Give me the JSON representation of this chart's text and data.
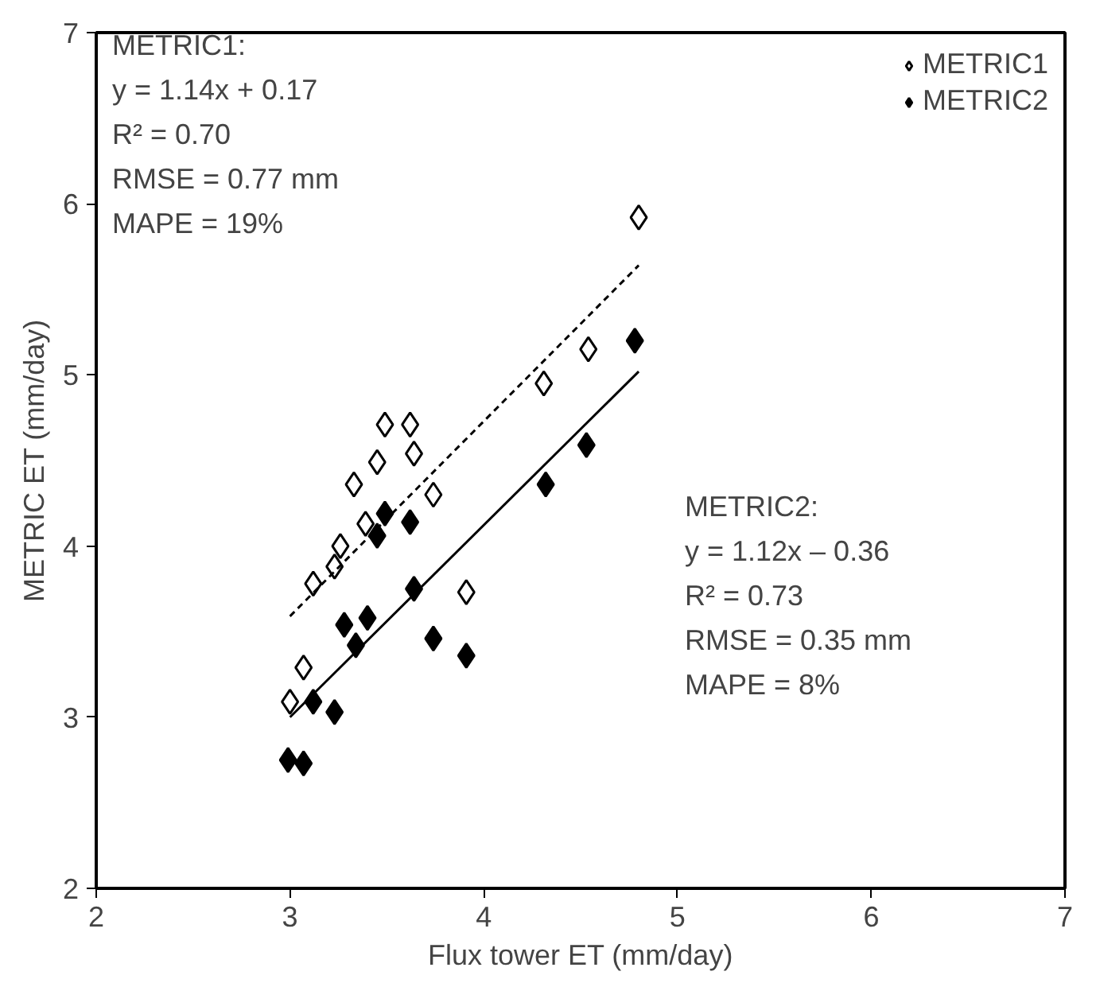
{
  "chart_data": {
    "type": "scatter",
    "xlabel": "Flux tower ET (mm/day)",
    "ylabel": "METRIC ET (mm/day)",
    "xlim": [
      2,
      7
    ],
    "ylim": [
      2,
      7
    ],
    "xticks": [
      2,
      3,
      4,
      5,
      6,
      7
    ],
    "yticks": [
      2,
      3,
      4,
      5,
      6,
      7
    ],
    "grid": false,
    "legend": "top right",
    "series": [
      {
        "name": "METRIC1",
        "color": "#ffffff",
        "marker": "diamond",
        "x": [
          3.0,
          3.07,
          3.12,
          3.23,
          3.26,
          3.39,
          3.33,
          3.45,
          3.49,
          3.62,
          3.64,
          3.74,
          3.91,
          4.31,
          4.54,
          4.8
        ],
        "values": [
          3.09,
          3.29,
          3.78,
          3.88,
          4.0,
          4.13,
          4.36,
          4.49,
          4.71,
          4.71,
          4.54,
          4.3,
          3.73,
          4.95,
          5.15,
          5.92
        ]
      },
      {
        "name": "METRIC2",
        "color": "#000000",
        "marker": "diamond",
        "x": [
          2.99,
          3.07,
          3.12,
          3.23,
          3.28,
          3.34,
          3.4,
          3.45,
          3.49,
          3.62,
          3.64,
          3.74,
          3.91,
          4.32,
          4.53,
          4.78
        ],
        "values": [
          2.75,
          2.73,
          3.09,
          3.03,
          3.54,
          3.42,
          3.58,
          4.06,
          4.19,
          4.14,
          3.75,
          3.46,
          3.36,
          4.36,
          4.59,
          5.2
        ]
      },
      {
        "type": "line",
        "color": "#000000",
        "marker": "none",
        "line_style": "dashed",
        "x": [
          3.0,
          4.8
        ],
        "values": [
          3.59,
          5.64
        ]
      },
      {
        "type": "line",
        "color": "#000000",
        "marker": "none",
        "line_style": "solid",
        "x": [
          3.0,
          4.8
        ],
        "values": [
          3.0,
          5.02
        ]
      }
    ],
    "annotations": [
      "METRIC1:",
      "y = 1.14x + 0.17",
      "R² =  0.70",
      "RMSE = 0.77 mm",
      "MAPE = 19%",
      "METRIC2:",
      "y = 1.12x – 0.36",
      "R² =  0.73",
      "RMSE = 0.35 mm",
      "MAPE = 8%"
    ]
  }
}
